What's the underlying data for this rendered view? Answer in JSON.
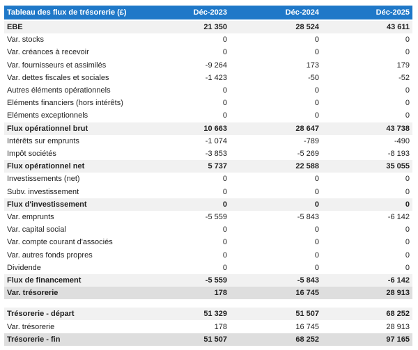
{
  "table": {
    "header": [
      "Tableau des flux de trésorerie (£)",
      "Déc-2023",
      "Déc-2024",
      "Déc-2025"
    ],
    "sections": [
      {
        "rows": [
          {
            "cells": [
              "EBE",
              "21 350",
              "28 524",
              "43 611"
            ],
            "style": "shaded-bold"
          },
          {
            "cells": [
              "Var. stocks",
              "0",
              "0",
              "0"
            ]
          },
          {
            "cells": [
              "Var. créances à recevoir",
              "0",
              "0",
              "0"
            ]
          },
          {
            "cells": [
              "Var. fournisseurs et assimilés",
              "-9 264",
              "173",
              "179"
            ]
          },
          {
            "cells": [
              "Var. dettes fiscales et sociales",
              "-1 423",
              "-50",
              "-52"
            ]
          },
          {
            "cells": [
              "Autres éléments opérationnels",
              "0",
              "0",
              "0"
            ]
          },
          {
            "cells": [
              "Eléments financiers (hors intérêts)",
              "0",
              "0",
              "0"
            ]
          },
          {
            "cells": [
              "Eléments exceptionnels",
              "0",
              "0",
              "0"
            ]
          },
          {
            "cells": [
              "Flux opérationnel brut",
              "10 663",
              "28 647",
              "43 738"
            ],
            "style": "shaded-bold"
          },
          {
            "cells": [
              "Intérêts sur emprunts",
              "-1 074",
              "-789",
              "-490"
            ]
          },
          {
            "cells": [
              "Impôt sociétés",
              "-3 853",
              "-5 269",
              "-8 193"
            ]
          },
          {
            "cells": [
              "Flux opérationnel net",
              "5 737",
              "22 588",
              "35 055"
            ],
            "style": "shaded-bold"
          },
          {
            "cells": [
              "Investissements (net)",
              "0",
              "0",
              "0"
            ]
          },
          {
            "cells": [
              "Subv. investissement",
              "0",
              "0",
              "0"
            ]
          },
          {
            "cells": [
              "Flux d'investissement",
              "0",
              "0",
              "0"
            ],
            "style": "shaded-bold"
          },
          {
            "cells": [
              "Var. emprunts",
              "-5 559",
              "-5 843",
              "-6 142"
            ]
          },
          {
            "cells": [
              "Var. capital social",
              "0",
              "0",
              "0"
            ]
          },
          {
            "cells": [
              "Var. compte courant d'associés",
              "0",
              "0",
              "0"
            ]
          },
          {
            "cells": [
              "Var. autres fonds propres",
              "0",
              "0",
              "0"
            ]
          },
          {
            "cells": [
              "Dividende",
              "0",
              "0",
              "0"
            ]
          },
          {
            "cells": [
              "Flux de financement",
              "-5 559",
              "-5 843",
              "-6 142"
            ],
            "style": "shaded-bold"
          },
          {
            "cells": [
              "Var. trésorerie",
              "178",
              "16 745",
              "28 913"
            ],
            "style": "dark-bold"
          }
        ]
      },
      {
        "rows": [
          {
            "cells": [
              "Trésorerie - départ",
              "51 329",
              "51 507",
              "68 252"
            ],
            "style": "shaded-bold"
          },
          {
            "cells": [
              "Var. trésorerie",
              "178",
              "16 745",
              "28 913"
            ]
          },
          {
            "cells": [
              "Trésorerie - fin",
              "51 507",
              "68 252",
              "97 165"
            ],
            "style": "dark-bold"
          }
        ]
      }
    ]
  }
}
